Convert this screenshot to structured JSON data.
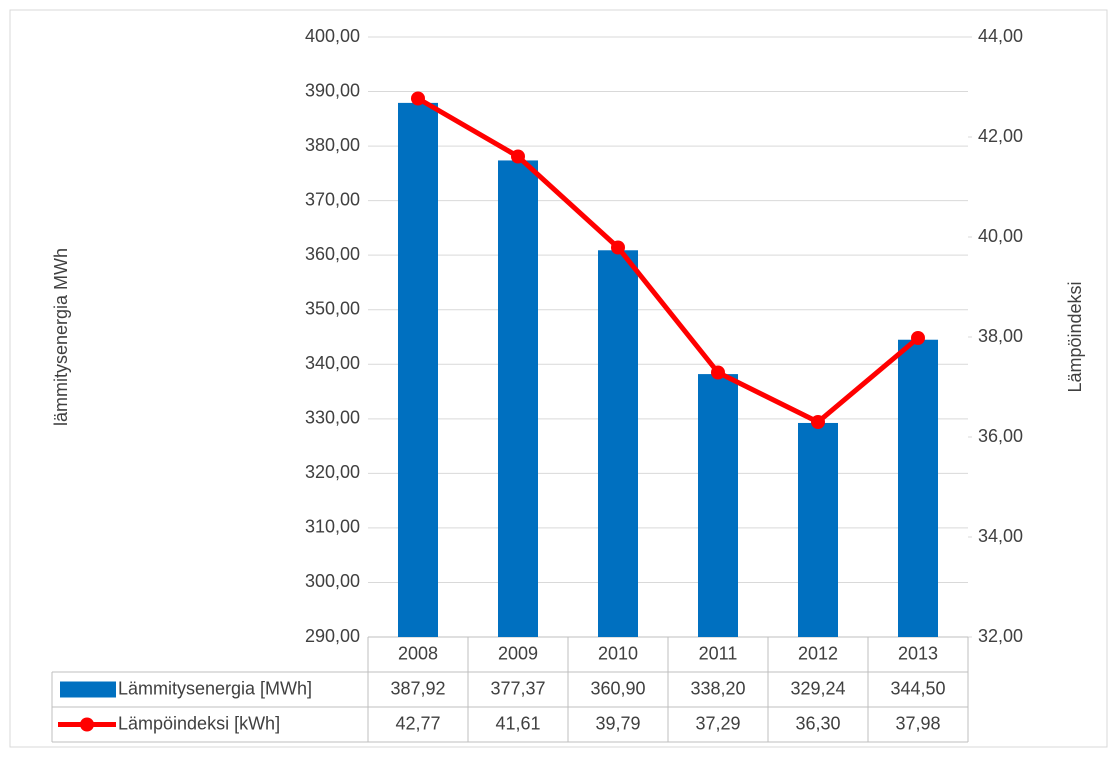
{
  "chart_data": {
    "type": "bar",
    "categories": [
      "2008",
      "2009",
      "2010",
      "2011",
      "2012",
      "2013"
    ],
    "y_label": "lämmitysenergia MWh",
    "y2_label": "Lämpöindeksi",
    "ylim": [
      290,
      400
    ],
    "yticks": [
      {
        "value": 290,
        "label": "290,00"
      },
      {
        "value": 300,
        "label": "300,00"
      },
      {
        "value": 310,
        "label": "310,00"
      },
      {
        "value": 320,
        "label": "320,00"
      },
      {
        "value": 330,
        "label": "330,00"
      },
      {
        "value": 340,
        "label": "340,00"
      },
      {
        "value": 350,
        "label": "350,00"
      },
      {
        "value": 360,
        "label": "360,00"
      },
      {
        "value": 370,
        "label": "370,00"
      },
      {
        "value": 380,
        "label": "380,00"
      },
      {
        "value": 390,
        "label": "390,00"
      },
      {
        "value": 400,
        "label": "400,00"
      }
    ],
    "y2lim": [
      32,
      44
    ],
    "y2ticks": [
      {
        "value": 32,
        "label": "32,00"
      },
      {
        "value": 34,
        "label": "34,00"
      },
      {
        "value": 36,
        "label": "36,00"
      },
      {
        "value": 38,
        "label": "38,00"
      },
      {
        "value": 40,
        "label": "40,00"
      },
      {
        "value": 42,
        "label": "42,00"
      },
      {
        "value": 44,
        "label": "44,00"
      }
    ],
    "grid": true,
    "series": [
      {
        "name": "Lämmitysenergia [MWh]",
        "type": "bar",
        "color": "#0070c0",
        "values": [
          387.92,
          377.37,
          360.9,
          338.2,
          329.24,
          344.5
        ],
        "value_labels": [
          "387,92",
          "377,37",
          "360,90",
          "338,20",
          "329,24",
          "344,50"
        ]
      },
      {
        "name": "Lämpöindeksi [kWh]",
        "type": "line",
        "axis": "y2",
        "color": "#ff0000",
        "values": [
          42.77,
          41.61,
          39.79,
          37.29,
          36.3,
          37.98
        ],
        "value_labels": [
          "42,77",
          "41,61",
          "39,79",
          "37,29",
          "36,30",
          "37,98"
        ]
      }
    ]
  }
}
